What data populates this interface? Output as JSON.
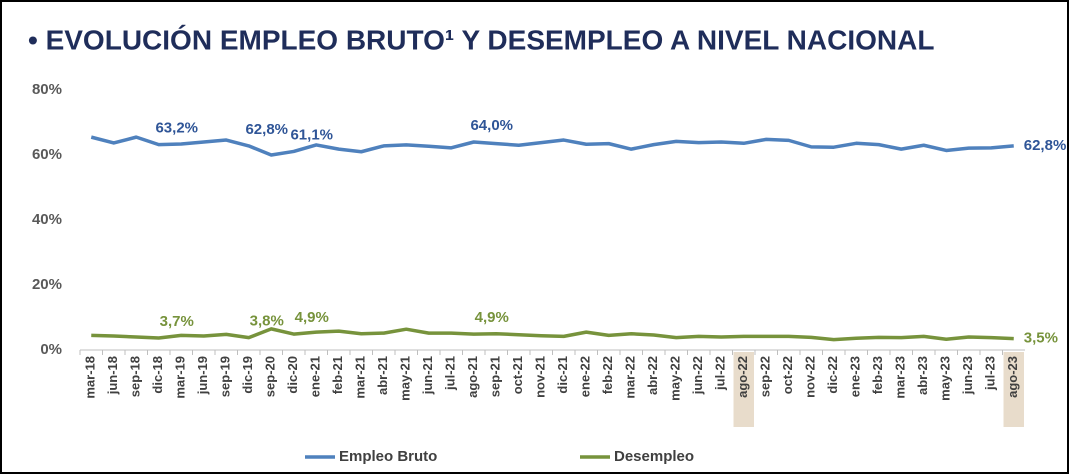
{
  "chart_data": {
    "type": "line",
    "title": "• EVOLUCIÓN EMPLEO BRUTO¹ Y DESEMPLEO A NIVEL NACIONAL",
    "categories": [
      "mar-18",
      "jun-18",
      "sep-18",
      "dic-18",
      "mar-19",
      "jun-19",
      "sep-19",
      "dic-19",
      "sep-20",
      "dic-20",
      "ene-21",
      "feb-21",
      "mar-21",
      "abr-21",
      "may-21",
      "jun-21",
      "jul-21",
      "ago-21",
      "sep-21",
      "oct-21",
      "nov-21",
      "dic-21",
      "ene-22",
      "feb-22",
      "mar-22",
      "abr-22",
      "may-22",
      "jun-22",
      "jul-22",
      "ago-22",
      "sep-22",
      "oct-22",
      "nov-22",
      "dic-22",
      "ene-23",
      "feb-23",
      "mar-23",
      "abr-23",
      "may-23",
      "jun-23",
      "jul-23",
      "ago-23"
    ],
    "series": [
      {
        "name": "Empleo Bruto",
        "color": "#4f81bd",
        "label_color": "#2f5597",
        "values": [
          65.5,
          63.7,
          65.5,
          63.2,
          63.4,
          64.0,
          64.6,
          62.8,
          60.0,
          61.1,
          63.1,
          61.8,
          61.0,
          62.8,
          63.1,
          62.7,
          62.2,
          64.0,
          63.5,
          63.0,
          63.8,
          64.6,
          63.3,
          63.5,
          61.8,
          63.2,
          64.2,
          63.8,
          64.0,
          63.6,
          64.8,
          64.5,
          62.5,
          62.4,
          63.6,
          63.2,
          61.8,
          63.0,
          61.4,
          62.1,
          62.2,
          62.8
        ],
        "value_labels": [
          null,
          null,
          null,
          "63,2%",
          null,
          null,
          null,
          "62,8%",
          null,
          "61,1%",
          null,
          null,
          null,
          null,
          null,
          null,
          null,
          "64,0%",
          null,
          null,
          null,
          null,
          null,
          null,
          null,
          null,
          null,
          null,
          null,
          null,
          null,
          null,
          null,
          null,
          null,
          null,
          null,
          null,
          null,
          null,
          null,
          "62,8%"
        ]
      },
      {
        "name": "Desempleo",
        "color": "#77933c",
        "label_color": "#77933c",
        "values": [
          4.5,
          4.3,
          4.0,
          3.7,
          4.5,
          4.3,
          4.8,
          3.8,
          6.5,
          4.9,
          5.5,
          5.8,
          5.0,
          5.2,
          6.4,
          5.2,
          5.2,
          4.9,
          5.0,
          4.7,
          4.4,
          4.2,
          5.5,
          4.5,
          5.0,
          4.6,
          3.8,
          4.2,
          4.0,
          4.2,
          4.2,
          4.2,
          3.9,
          3.2,
          3.6,
          3.9,
          3.8,
          4.2,
          3.3,
          4.0,
          3.8,
          3.5
        ],
        "value_labels": [
          null,
          null,
          null,
          "3,7%",
          null,
          null,
          null,
          "3,8%",
          null,
          "4,9%",
          null,
          null,
          null,
          null,
          null,
          null,
          null,
          "4,9%",
          null,
          null,
          null,
          null,
          null,
          null,
          null,
          null,
          null,
          null,
          null,
          null,
          null,
          null,
          null,
          null,
          null,
          null,
          null,
          null,
          null,
          null,
          null,
          "3,5%"
        ]
      }
    ],
    "highlight": [
      29,
      41
    ],
    "ylim": [
      0,
      80
    ],
    "yticks": [
      {
        "value": 0,
        "label": "0%"
      },
      {
        "value": 20,
        "label": "20%"
      },
      {
        "value": 40,
        "label": "40%"
      },
      {
        "value": 60,
        "label": "60%"
      },
      {
        "value": 80,
        "label": "80%"
      }
    ],
    "grid": false,
    "legend": "bottom"
  }
}
